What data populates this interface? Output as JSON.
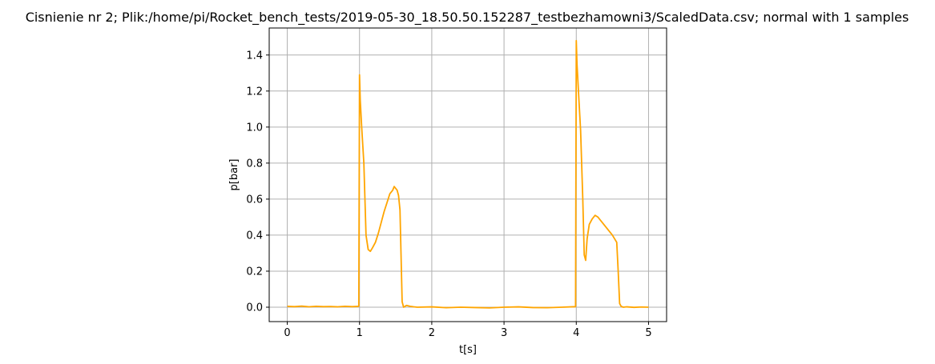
{
  "chart_data": {
    "type": "line",
    "title": "Cisnienie nr 2; Plik:/home/pi/Rocket_bench_tests/2019-05-30_18.50.50.152287_testbezhamowni3/ScaledData.csv; normal with 1 samples",
    "xlabel": "t[s]",
    "ylabel": "p[bar]",
    "xlim": [
      -0.25,
      5.25
    ],
    "ylim": [
      -0.08,
      1.55
    ],
    "xticks": [
      0,
      1,
      2,
      3,
      4,
      5
    ],
    "xtick_labels": [
      "0",
      "1",
      "2",
      "3",
      "4",
      "5"
    ],
    "yticks": [
      0.0,
      0.2,
      0.4,
      0.6,
      0.8,
      1.0,
      1.2,
      1.4
    ],
    "ytick_labels": [
      "0.0",
      "0.2",
      "0.4",
      "0.6",
      "0.8",
      "1.0",
      "1.2",
      "1.4"
    ],
    "grid": true,
    "series": [
      {
        "color": "#ffa500",
        "x": [
          0.0,
          0.1,
          0.2,
          0.3,
          0.4,
          0.5,
          0.6,
          0.7,
          0.8,
          0.9,
          0.99,
          1.0,
          1.01,
          1.03,
          1.06,
          1.09,
          1.12,
          1.15,
          1.18,
          1.22,
          1.26,
          1.3,
          1.34,
          1.38,
          1.42,
          1.46,
          1.48,
          1.5,
          1.52,
          1.54,
          1.56,
          1.59,
          1.61,
          1.65,
          1.7,
          1.75,
          1.8,
          2.0,
          2.2,
          2.4,
          2.6,
          2.8,
          3.0,
          3.2,
          3.4,
          3.6,
          3.8,
          3.99,
          4.0,
          4.01,
          4.03,
          4.06,
          4.09,
          4.11,
          4.13,
          4.15,
          4.18,
          4.22,
          4.26,
          4.3,
          4.34,
          4.38,
          4.42,
          4.46,
          4.5,
          4.53,
          4.56,
          4.58,
          4.6,
          4.62,
          4.65,
          4.7,
          4.8,
          4.9,
          5.0
        ],
        "y": [
          0.005,
          0.003,
          0.006,
          0.002,
          0.005,
          0.003,
          0.004,
          0.002,
          0.005,
          0.003,
          0.005,
          1.29,
          1.15,
          1.0,
          0.8,
          0.4,
          0.32,
          0.31,
          0.33,
          0.36,
          0.41,
          0.47,
          0.53,
          0.58,
          0.63,
          0.65,
          0.67,
          0.66,
          0.65,
          0.62,
          0.54,
          0.03,
          0.0,
          0.01,
          0.005,
          0.002,
          0.0,
          0.002,
          -0.003,
          0.0,
          -0.002,
          -0.004,
          0.0,
          0.002,
          -0.002,
          -0.003,
          0.0,
          0.003,
          1.48,
          1.35,
          1.2,
          0.98,
          0.6,
          0.29,
          0.26,
          0.38,
          0.46,
          0.49,
          0.51,
          0.5,
          0.48,
          0.46,
          0.44,
          0.42,
          0.4,
          0.38,
          0.36,
          0.2,
          0.02,
          0.005,
          0.0,
          0.002,
          -0.001,
          0.001,
          0.0
        ]
      }
    ]
  }
}
